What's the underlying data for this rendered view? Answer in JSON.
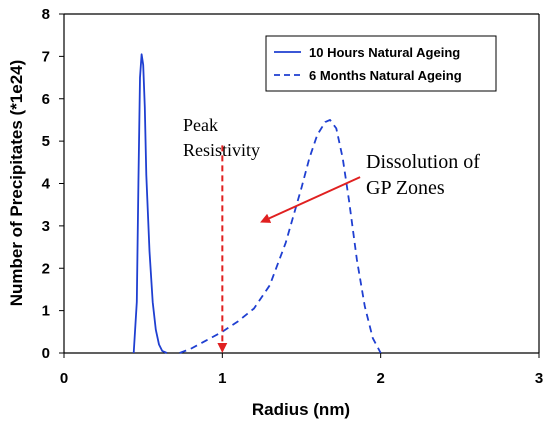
{
  "chart_data": {
    "type": "line",
    "title": "",
    "xlabel": "Radius (nm)",
    "ylabel": "Number of Precipitates (*1e24)",
    "xlim": [
      0,
      3
    ],
    "ylim": [
      0,
      8
    ],
    "xticks": [
      "0",
      "1",
      "2",
      "3"
    ],
    "yticks": [
      "0",
      "1",
      "2",
      "3",
      "4",
      "5",
      "6",
      "7",
      "8"
    ],
    "grid": false,
    "legend_position": "top-right",
    "series": [
      {
        "name": "10 Hours Natural Ageing",
        "style": "solid",
        "color": "#1f3fd1",
        "x": [
          0.44,
          0.46,
          0.47,
          0.48,
          0.49,
          0.5,
          0.51,
          0.52,
          0.54,
          0.56,
          0.58,
          0.6,
          0.62,
          0.65
        ],
        "y": [
          0.0,
          1.2,
          4.0,
          6.5,
          7.05,
          6.8,
          5.8,
          4.2,
          2.4,
          1.2,
          0.55,
          0.2,
          0.05,
          0.0
        ]
      },
      {
        "name": "6 Months Natural Ageing",
        "style": "dashed",
        "color": "#1f3fd1",
        "x": [
          0.73,
          0.8,
          0.9,
          1.0,
          1.1,
          1.2,
          1.3,
          1.4,
          1.5,
          1.55,
          1.6,
          1.65,
          1.68,
          1.72,
          1.76,
          1.8,
          1.85,
          1.9,
          1.95,
          2.0
        ],
        "y": [
          0.0,
          0.1,
          0.3,
          0.5,
          0.75,
          1.05,
          1.6,
          2.6,
          3.9,
          4.6,
          5.15,
          5.45,
          5.5,
          5.3,
          4.6,
          3.6,
          2.2,
          1.1,
          0.35,
          0.0
        ]
      }
    ],
    "annotations": [
      {
        "lines": [
          "Peak",
          "Resistivity"
        ],
        "arrow_style": "dashed",
        "arrow_color": "#e02020",
        "arrow_from": [
          1.0,
          4.9
        ],
        "arrow_to": [
          1.0,
          0.05
        ]
      },
      {
        "lines": [
          "Dissolution of",
          "GP Zones"
        ],
        "arrow_style": "solid",
        "arrow_color": "#e02020",
        "arrow_from": [
          1.87,
          4.15
        ],
        "arrow_to": [
          1.25,
          3.1
        ]
      }
    ]
  }
}
